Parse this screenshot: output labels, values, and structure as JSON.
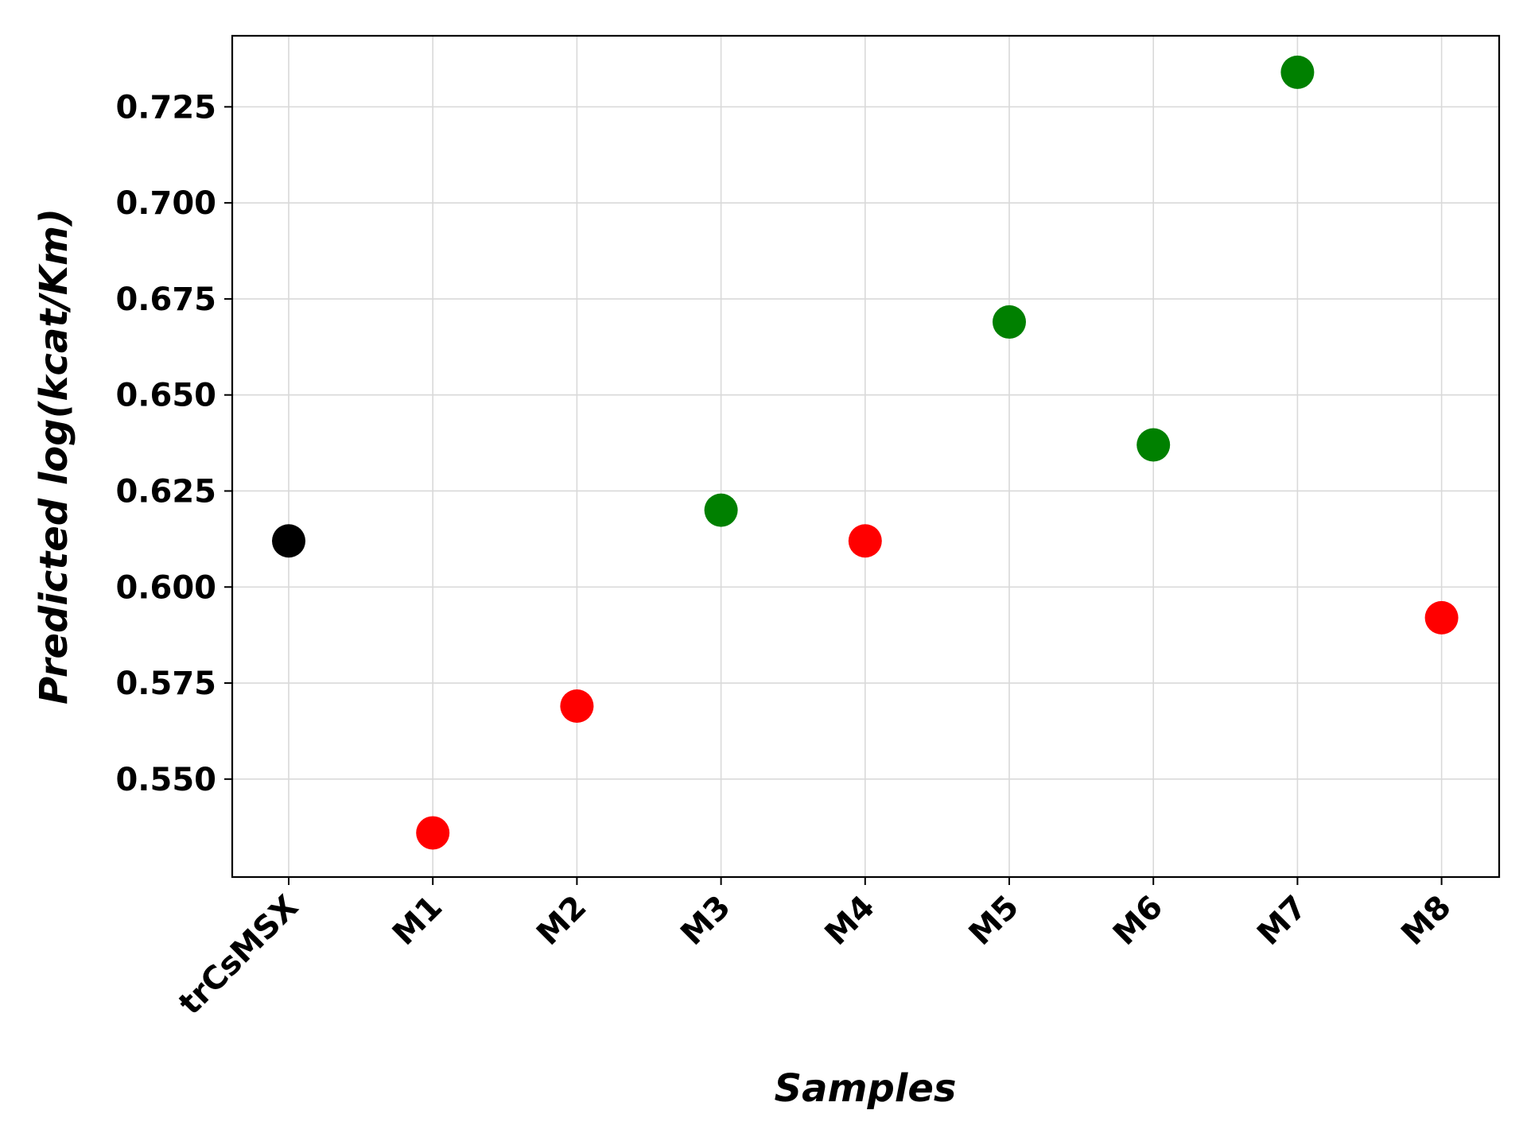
{
  "chart_data": {
    "type": "scatter",
    "title": "",
    "xlabel": "Samples",
    "ylabel": "Predicted log(kcat/Km)",
    "categories": [
      "trCsMSX",
      "M1",
      "M2",
      "M3",
      "M4",
      "M5",
      "M6",
      "M7",
      "M8"
    ],
    "values": [
      0.612,
      0.536,
      0.569,
      0.62,
      0.612,
      0.669,
      0.637,
      0.734,
      0.592
    ],
    "point_colors": [
      "#000000",
      "#ff0000",
      "#ff0000",
      "#008000",
      "#ff0000",
      "#008000",
      "#008000",
      "#008000",
      "#ff0000"
    ],
    "yticks": [
      "0.550",
      "0.575",
      "0.600",
      "0.625",
      "0.650",
      "0.675",
      "0.700",
      "0.725"
    ],
    "ylim": [
      0.5245,
      0.7435
    ],
    "grid": true,
    "legend": "none"
  }
}
